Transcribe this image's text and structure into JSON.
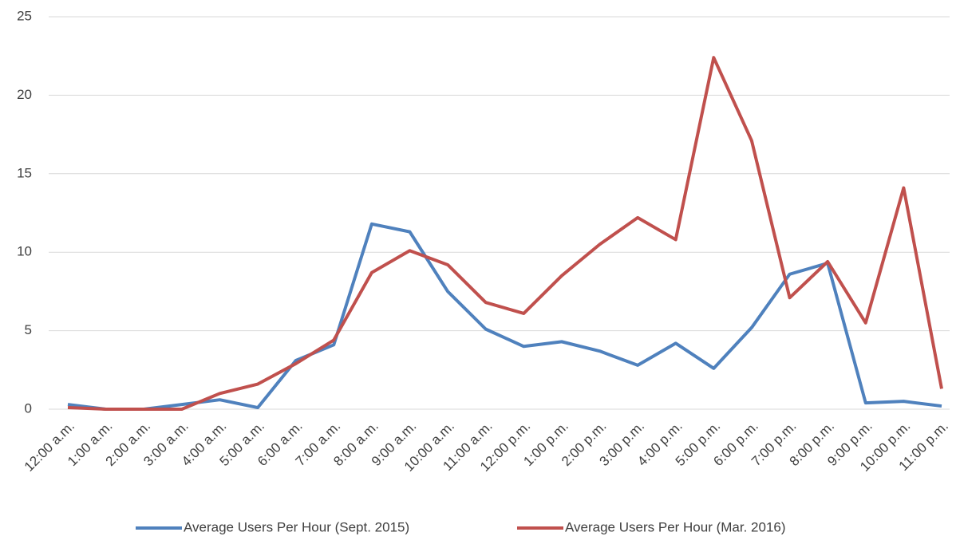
{
  "chart_data": {
    "type": "line",
    "categories": [
      "12:00 a.m.",
      "1:00 a.m.",
      "2:00 a.m.",
      "3:00 a.m.",
      "4:00 a.m.",
      "5:00 a.m.",
      "6:00 a.m.",
      "7:00 a.m.",
      "8:00 a.m.",
      "9:00 a.m.",
      "10:00 a.m.",
      "11:00 a.m.",
      "12:00 p.m.",
      "1:00 p.m.",
      "2:00 p.m.",
      "3:00 p.m.",
      "4:00 p.m.",
      "5:00 p.m.",
      "6:00 p.m.",
      "7:00 p.m.",
      "8:00 p.m.",
      "9:00 p.m.",
      "10:00 p.m.",
      "11:00 p.m."
    ],
    "series": [
      {
        "name": "Average Users Per Hour (Sept. 2015)",
        "color": "#4f81bd",
        "values": [
          0.3,
          0,
          0,
          0.3,
          0.6,
          0.1,
          3.1,
          4.1,
          11.8,
          11.3,
          7.5,
          5.1,
          4.0,
          4.3,
          3.7,
          2.8,
          4.2,
          2.6,
          5.2,
          8.6,
          9.3,
          0.4,
          0.5,
          0.2
        ]
      },
      {
        "name": "Average Users Per Hour (Mar. 2016)",
        "color": "#c0504d",
        "values": [
          0.1,
          0,
          0,
          0,
          1.0,
          1.6,
          2.9,
          4.4,
          8.7,
          10.1,
          9.2,
          6.8,
          6.1,
          8.5,
          10.5,
          12.2,
          10.8,
          22.4,
          17.1,
          7.1,
          9.4,
          5.5,
          14.1,
          1.3
        ]
      }
    ],
    "ylim": [
      0,
      25
    ],
    "yticks": [
      0,
      5,
      10,
      15,
      20,
      25
    ],
    "grid": true,
    "legend": "bottom"
  }
}
